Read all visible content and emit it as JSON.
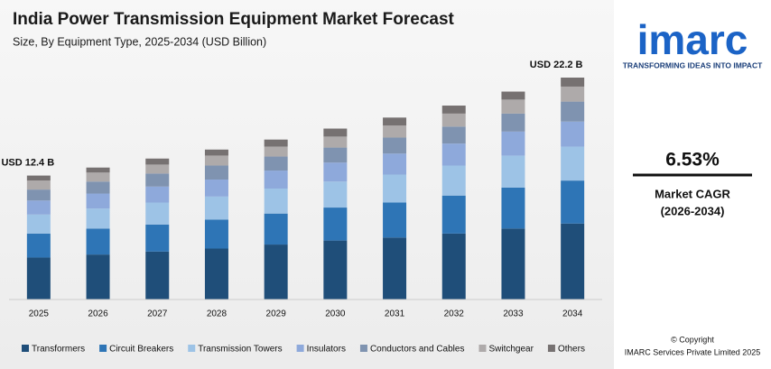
{
  "chart_data": {
    "type": "stacked_bar",
    "title": "India Power Transmission Equipment Market Forecast",
    "subtitle": "Size, By Equipment Type, 2025-2034 (USD Billion)",
    "categories": [
      "2025",
      "2026",
      "2027",
      "2028",
      "2029",
      "2030",
      "2031",
      "2032",
      "2033",
      "2034"
    ],
    "series": [
      {
        "name": "Transformers",
        "color": "#1f4e79",
        "values": [
          4.2,
          4.5,
          4.8,
          5.1,
          5.5,
          5.9,
          6.2,
          6.6,
          7.1,
          7.6
        ]
      },
      {
        "name": "Circuit Breakers",
        "color": "#2e75b6",
        "values": [
          2.4,
          2.6,
          2.7,
          2.9,
          3.1,
          3.3,
          3.5,
          3.8,
          4.1,
          4.3
        ]
      },
      {
        "name": "Transmission Towers",
        "color": "#9dc3e6",
        "values": [
          1.9,
          2.0,
          2.2,
          2.3,
          2.5,
          2.6,
          2.8,
          3.0,
          3.2,
          3.4
        ]
      },
      {
        "name": "Insulators",
        "color": "#8ea9db",
        "values": [
          1.4,
          1.5,
          1.6,
          1.7,
          1.8,
          1.9,
          2.1,
          2.2,
          2.4,
          2.5
        ]
      },
      {
        "name": "Conductors and Cables",
        "color": "#7f93b0",
        "values": [
          1.1,
          1.2,
          1.3,
          1.4,
          1.4,
          1.5,
          1.6,
          1.7,
          1.8,
          2.0
        ]
      },
      {
        "name": "Switchgear",
        "color": "#aeaaaa",
        "values": [
          0.9,
          0.9,
          0.9,
          1.0,
          1.0,
          1.1,
          1.2,
          1.3,
          1.4,
          1.5
        ]
      },
      {
        "name": "Others",
        "color": "#767171",
        "values": [
          0.5,
          0.5,
          0.6,
          0.6,
          0.7,
          0.8,
          0.8,
          0.8,
          0.8,
          0.9
        ]
      }
    ],
    "annotations": [
      {
        "text": "USD 12.4 B",
        "category": 0
      },
      {
        "text": "USD 22.2 B",
        "category": 9
      }
    ]
  },
  "side_panel": {
    "logo": "imarc",
    "tagline": "TRANSFORMING IDEAS INTO IMPACT",
    "cagr_value": "6.53%",
    "cagr_label": "Market CAGR",
    "cagr_period": "(2026-2034)",
    "copyright": "© Copyright",
    "company": "IMARC Services Private Limited 2025"
  }
}
